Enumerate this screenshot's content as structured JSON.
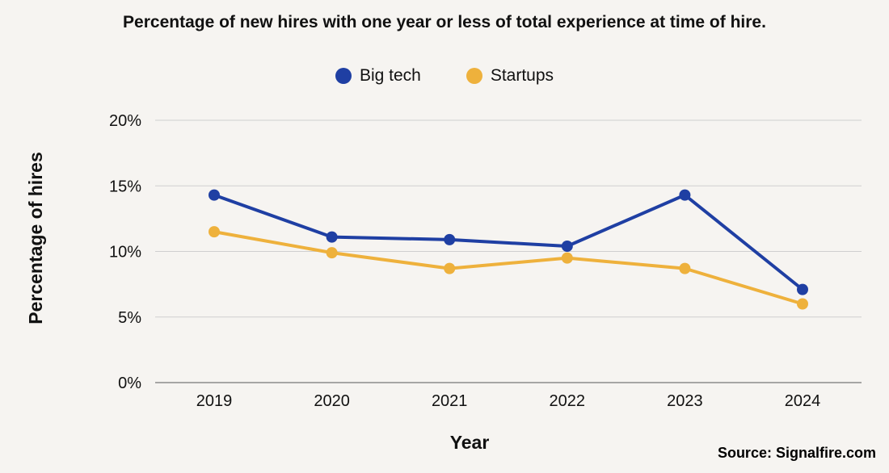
{
  "source": "Source: Signalfire.com",
  "chart_data": {
    "type": "line",
    "title": "Percentage of new hires with one year or less of total experience at time of hire.",
    "xlabel": "Year",
    "ylabel": "Percentage of hires",
    "categories": [
      "2019",
      "2020",
      "2021",
      "2022",
      "2023",
      "2024"
    ],
    "ylim": [
      0,
      20
    ],
    "yticks": [
      0,
      5,
      10,
      15,
      20
    ],
    "ytick_labels": [
      "0%",
      "5%",
      "10%",
      "15%",
      "20%"
    ],
    "grid": true,
    "legend_position": "top-center",
    "series": [
      {
        "name": "Big tech",
        "color": "#1f3fa3",
        "values": [
          14.3,
          11.1,
          10.9,
          10.4,
          14.3,
          7.1
        ]
      },
      {
        "name": "Startups",
        "color": "#eeb13c",
        "values": [
          11.5,
          9.9,
          8.7,
          9.5,
          8.7,
          6.0
        ]
      }
    ]
  }
}
